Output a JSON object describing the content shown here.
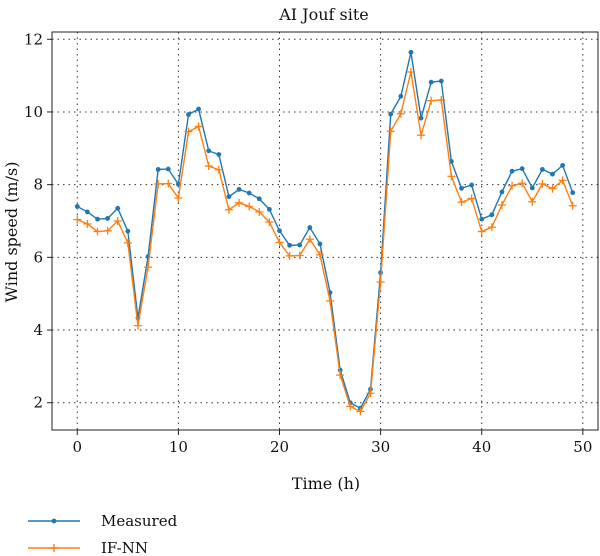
{
  "chart_data": {
    "type": "line",
    "title": "AI Jouf site",
    "xlabel": "Time (h)",
    "ylabel": "Wind speed (m/s)",
    "xlim": [
      -2.5,
      51.5
    ],
    "ylim": [
      1.25,
      12.2
    ],
    "xticks": [
      0,
      10,
      20,
      30,
      40,
      50
    ],
    "yticks": [
      2,
      4,
      6,
      8,
      10,
      12
    ],
    "grid": true,
    "grid_style": "dotted",
    "legend_position": "bottom-left",
    "x": [
      0,
      1,
      2,
      3,
      4,
      5,
      6,
      7,
      8,
      9,
      10,
      11,
      12,
      13,
      14,
      15,
      16,
      17,
      18,
      19,
      20,
      21,
      22,
      23,
      24,
      25,
      26,
      27,
      28,
      29,
      30,
      31,
      32,
      33,
      34,
      35,
      36,
      37,
      38,
      39,
      40,
      41,
      42,
      43,
      44,
      45,
      46,
      47,
      48,
      49
    ],
    "series": [
      {
        "name": "Measured",
        "color": "#1f77b4",
        "marker": "dot",
        "values": [
          7.4,
          7.25,
          7.05,
          7.07,
          7.35,
          6.72,
          4.33,
          6.02,
          8.42,
          8.43,
          8.01,
          9.93,
          10.08,
          8.93,
          8.83,
          7.67,
          7.87,
          7.77,
          7.61,
          7.32,
          6.73,
          6.33,
          6.34,
          6.82,
          6.37,
          5.03,
          2.9,
          2.0,
          1.85,
          2.37,
          5.58,
          9.94,
          10.43,
          11.64,
          9.83,
          10.82,
          10.85,
          8.64,
          7.9,
          7.99,
          7.05,
          7.17,
          7.8,
          8.37,
          8.44,
          7.91,
          8.42,
          8.29,
          8.53,
          7.78
        ]
      },
      {
        "name": "IF-NN",
        "color": "#ff7f0e",
        "marker": "plus",
        "values": [
          7.04,
          6.92,
          6.71,
          6.73,
          7.0,
          6.4,
          4.12,
          5.73,
          8.02,
          8.03,
          7.63,
          9.46,
          9.6,
          8.51,
          8.41,
          7.31,
          7.5,
          7.4,
          7.25,
          6.97,
          6.41,
          6.04,
          6.05,
          6.5,
          6.07,
          4.8,
          2.76,
          1.9,
          1.76,
          2.26,
          5.32,
          9.47,
          9.95,
          11.1,
          9.36,
          10.31,
          10.33,
          8.23,
          7.52,
          7.62,
          6.71,
          6.83,
          7.44,
          7.97,
          8.04,
          7.53,
          8.02,
          7.89,
          8.12,
          7.42
        ]
      }
    ]
  }
}
